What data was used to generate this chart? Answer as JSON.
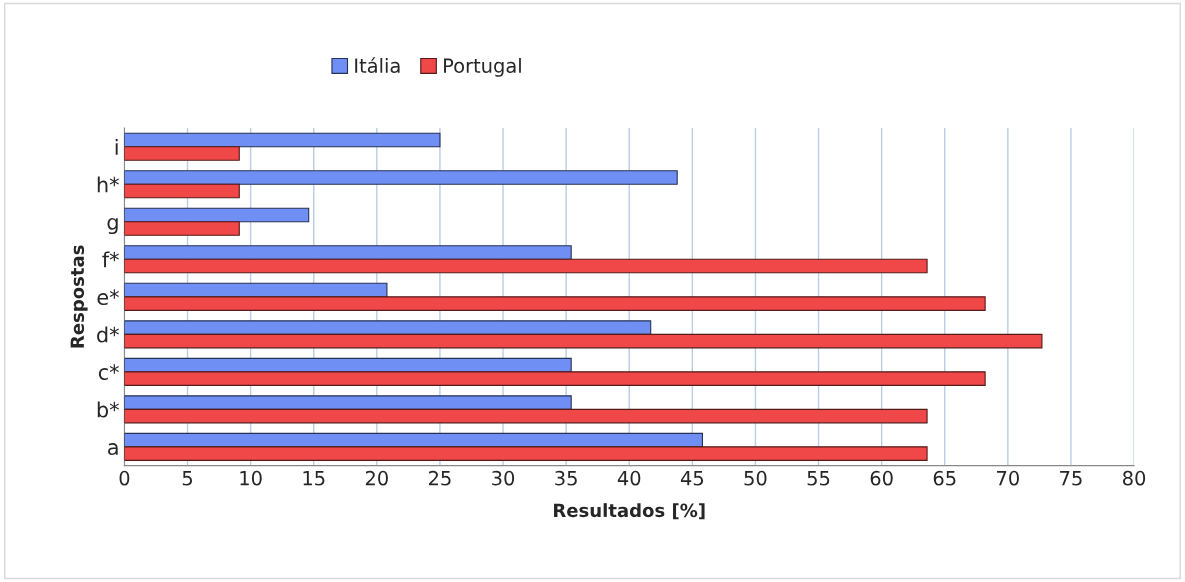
{
  "chart_data": {
    "type": "bar",
    "orientation": "horizontal",
    "xlabel": "Resultados [%]",
    "ylabel": "Respostas",
    "categories": [
      "i",
      "h*",
      "g",
      "f*",
      "e*",
      "d*",
      "c*",
      "b*",
      "a"
    ],
    "series": [
      {
        "name": "Itália",
        "color": "#6f8ff5",
        "values": [
          25.0,
          43.8,
          14.6,
          35.4,
          20.8,
          41.7,
          35.4,
          35.4,
          45.8
        ]
      },
      {
        "name": "Portugal",
        "color": "#f04848",
        "values": [
          9.1,
          9.1,
          9.1,
          63.6,
          68.2,
          72.7,
          68.2,
          63.6,
          63.6
        ]
      }
    ],
    "xlim": [
      0,
      80
    ],
    "xticks": [
      0,
      5,
      10,
      15,
      20,
      25,
      30,
      35,
      40,
      45,
      50,
      55,
      60,
      65,
      70,
      75,
      80
    ],
    "grid": "x",
    "legend": "top"
  }
}
